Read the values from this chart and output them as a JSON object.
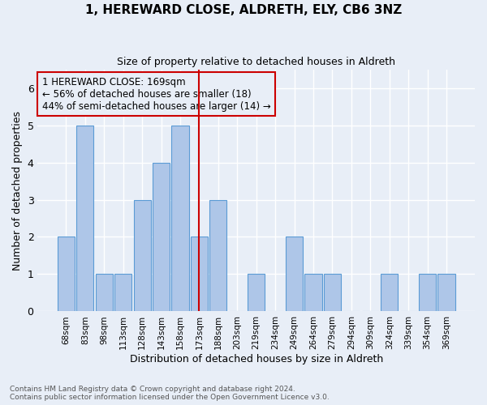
{
  "title1": "1, HEREWARD CLOSE, ALDRETH, ELY, CB6 3NZ",
  "title2": "Size of property relative to detached houses in Aldreth",
  "xlabel": "Distribution of detached houses by size in Aldreth",
  "ylabel": "Number of detached properties",
  "footer": "Contains HM Land Registry data © Crown copyright and database right 2024.\nContains public sector information licensed under the Open Government Licence v3.0.",
  "categories": [
    "68sqm",
    "83sqm",
    "98sqm",
    "113sqm",
    "128sqm",
    "143sqm",
    "158sqm",
    "173sqm",
    "188sqm",
    "203sqm",
    "219sqm",
    "234sqm",
    "249sqm",
    "264sqm",
    "279sqm",
    "294sqm",
    "309sqm",
    "324sqm",
    "339sqm",
    "354sqm",
    "369sqm"
  ],
  "values": [
    2,
    5,
    1,
    1,
    3,
    4,
    5,
    2,
    3,
    0,
    1,
    0,
    2,
    1,
    1,
    0,
    0,
    1,
    0,
    1,
    1
  ],
  "bar_color": "#aec6e8",
  "bar_edge_color": "#5b9bd5",
  "ref_line_index": 7,
  "ref_line_color": "#cc0000",
  "annotation_text": "1 HEREWARD CLOSE: 169sqm\n← 56% of detached houses are smaller (18)\n44% of semi-detached houses are larger (14) →",
  "annotation_box_color": "#cc0000",
  "ylim": [
    0,
    6.5
  ],
  "background_color": "#e8eef7",
  "grid_color": "#ffffff"
}
